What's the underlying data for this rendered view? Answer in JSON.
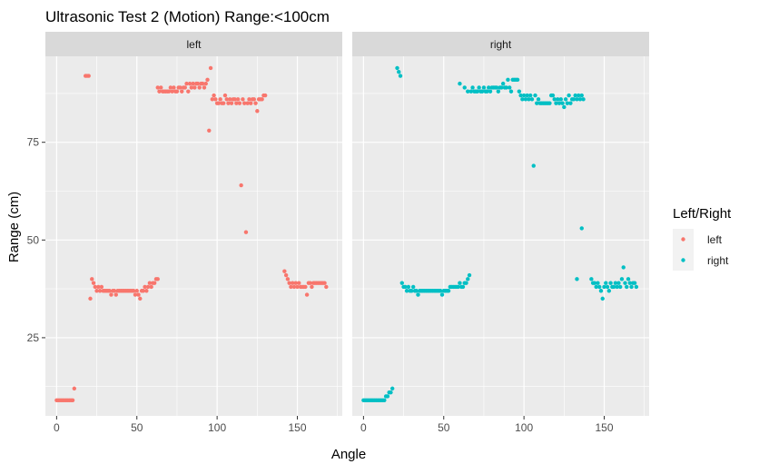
{
  "chart_data": {
    "type": "scatter",
    "title": "Ultrasonic Test 2 (Motion) Range:<100cm",
    "xlabel": "Angle",
    "ylabel": "Range (cm)",
    "xlim": [
      -7,
      178
    ],
    "ylim": [
      5,
      97
    ],
    "x_ticks": [
      0,
      50,
      100,
      150
    ],
    "y_ticks": [
      25,
      50,
      75
    ],
    "grid": true,
    "legend": {
      "title": "Left/Right",
      "position": "right",
      "entries": [
        {
          "label": "left",
          "color": "#F8766D"
        },
        {
          "label": "right",
          "color": "#00BFC4"
        }
      ]
    },
    "facets": [
      {
        "label": "left",
        "color": "#F8766D",
        "points": [
          [
            0,
            9
          ],
          [
            1,
            9
          ],
          [
            2,
            9
          ],
          [
            3,
            9
          ],
          [
            4,
            9
          ],
          [
            5,
            9
          ],
          [
            6,
            9
          ],
          [
            7,
            9
          ],
          [
            8,
            9
          ],
          [
            9,
            9
          ],
          [
            10,
            9
          ],
          [
            11,
            12
          ],
          [
            18,
            92
          ],
          [
            19,
            92
          ],
          [
            20,
            92
          ],
          [
            21,
            35
          ],
          [
            22,
            40
          ],
          [
            23,
            39
          ],
          [
            24,
            38
          ],
          [
            25,
            37
          ],
          [
            26,
            38
          ],
          [
            27,
            37
          ],
          [
            28,
            38
          ],
          [
            29,
            37
          ],
          [
            30,
            37
          ],
          [
            31,
            37
          ],
          [
            32,
            37
          ],
          [
            33,
            37
          ],
          [
            34,
            36
          ],
          [
            35,
            37
          ],
          [
            36,
            37
          ],
          [
            37,
            36
          ],
          [
            38,
            37
          ],
          [
            39,
            37
          ],
          [
            40,
            37
          ],
          [
            41,
            37
          ],
          [
            42,
            37
          ],
          [
            43,
            37
          ],
          [
            44,
            37
          ],
          [
            45,
            37
          ],
          [
            46,
            37
          ],
          [
            47,
            37
          ],
          [
            48,
            37
          ],
          [
            49,
            36
          ],
          [
            50,
            37
          ],
          [
            51,
            36
          ],
          [
            52,
            35
          ],
          [
            53,
            37
          ],
          [
            54,
            37
          ],
          [
            55,
            38
          ],
          [
            56,
            37
          ],
          [
            57,
            38
          ],
          [
            58,
            39
          ],
          [
            59,
            38
          ],
          [
            60,
            39
          ],
          [
            61,
            39
          ],
          [
            62,
            40
          ],
          [
            63,
            40
          ],
          [
            63,
            89
          ],
          [
            64,
            88
          ],
          [
            65,
            89
          ],
          [
            66,
            88
          ],
          [
            67,
            88
          ],
          [
            68,
            88
          ],
          [
            69,
            88
          ],
          [
            70,
            88
          ],
          [
            71,
            89
          ],
          [
            72,
            88
          ],
          [
            73,
            89
          ],
          [
            74,
            88
          ],
          [
            75,
            88
          ],
          [
            76,
            89
          ],
          [
            77,
            89
          ],
          [
            78,
            88
          ],
          [
            79,
            89
          ],
          [
            80,
            89
          ],
          [
            81,
            90
          ],
          [
            82,
            88
          ],
          [
            83,
            90
          ],
          [
            84,
            89
          ],
          [
            85,
            90
          ],
          [
            86,
            89
          ],
          [
            87,
            90
          ],
          [
            88,
            90
          ],
          [
            89,
            89
          ],
          [
            90,
            90
          ],
          [
            91,
            90
          ],
          [
            92,
            89
          ],
          [
            93,
            90
          ],
          [
            94,
            91
          ],
          [
            95,
            78
          ],
          [
            96,
            94
          ],
          [
            97,
            86
          ],
          [
            98,
            87
          ],
          [
            99,
            86
          ],
          [
            100,
            85
          ],
          [
            101,
            85
          ],
          [
            102,
            86
          ],
          [
            103,
            85
          ],
          [
            104,
            85
          ],
          [
            105,
            87
          ],
          [
            106,
            86
          ],
          [
            107,
            85
          ],
          [
            108,
            86
          ],
          [
            109,
            85
          ],
          [
            110,
            86
          ],
          [
            111,
            86
          ],
          [
            112,
            85
          ],
          [
            113,
            86
          ],
          [
            114,
            85
          ],
          [
            115,
            64
          ],
          [
            116,
            86
          ],
          [
            117,
            85
          ],
          [
            118,
            52
          ],
          [
            119,
            85
          ],
          [
            120,
            86
          ],
          [
            121,
            85
          ],
          [
            122,
            86
          ],
          [
            123,
            86
          ],
          [
            124,
            85
          ],
          [
            125,
            83
          ],
          [
            126,
            86
          ],
          [
            127,
            86
          ],
          [
            128,
            86
          ],
          [
            129,
            87
          ],
          [
            130,
            87
          ],
          [
            142,
            42
          ],
          [
            143,
            41
          ],
          [
            144,
            40
          ],
          [
            145,
            39
          ],
          [
            146,
            38
          ],
          [
            147,
            39
          ],
          [
            148,
            38
          ],
          [
            149,
            39
          ],
          [
            150,
            38
          ],
          [
            151,
            39
          ],
          [
            152,
            38
          ],
          [
            153,
            38
          ],
          [
            154,
            38
          ],
          [
            155,
            38
          ],
          [
            156,
            36
          ],
          [
            157,
            39
          ],
          [
            158,
            39
          ],
          [
            159,
            38
          ],
          [
            160,
            39
          ],
          [
            161,
            39
          ],
          [
            162,
            39
          ],
          [
            163,
            39
          ],
          [
            164,
            39
          ],
          [
            165,
            39
          ],
          [
            166,
            39
          ],
          [
            167,
            39
          ],
          [
            168,
            38
          ]
        ]
      },
      {
        "label": "right",
        "color": "#00BFC4",
        "points": [
          [
            0,
            9
          ],
          [
            1,
            9
          ],
          [
            2,
            9
          ],
          [
            3,
            9
          ],
          [
            4,
            9
          ],
          [
            5,
            9
          ],
          [
            6,
            9
          ],
          [
            7,
            9
          ],
          [
            8,
            9
          ],
          [
            9,
            9
          ],
          [
            10,
            9
          ],
          [
            11,
            9
          ],
          [
            12,
            9
          ],
          [
            13,
            9
          ],
          [
            14,
            10
          ],
          [
            15,
            10
          ],
          [
            16,
            11
          ],
          [
            17,
            11
          ],
          [
            18,
            12
          ],
          [
            21,
            94
          ],
          [
            22,
            93
          ],
          [
            23,
            92
          ],
          [
            24,
            39
          ],
          [
            25,
            38
          ],
          [
            26,
            38
          ],
          [
            27,
            37
          ],
          [
            28,
            38
          ],
          [
            29,
            37
          ],
          [
            30,
            37
          ],
          [
            31,
            38
          ],
          [
            32,
            37
          ],
          [
            33,
            37
          ],
          [
            34,
            36
          ],
          [
            35,
            37
          ],
          [
            36,
            37
          ],
          [
            37,
            37
          ],
          [
            38,
            37
          ],
          [
            39,
            37
          ],
          [
            40,
            37
          ],
          [
            41,
            37
          ],
          [
            42,
            37
          ],
          [
            43,
            37
          ],
          [
            44,
            37
          ],
          [
            45,
            37
          ],
          [
            46,
            37
          ],
          [
            47,
            37
          ],
          [
            48,
            37
          ],
          [
            49,
            36
          ],
          [
            50,
            37
          ],
          [
            51,
            37
          ],
          [
            52,
            37
          ],
          [
            53,
            37
          ],
          [
            54,
            38
          ],
          [
            55,
            38
          ],
          [
            56,
            38
          ],
          [
            57,
            38
          ],
          [
            58,
            38
          ],
          [
            59,
            38
          ],
          [
            60,
            39
          ],
          [
            61,
            38
          ],
          [
            62,
            38
          ],
          [
            63,
            39
          ],
          [
            64,
            39
          ],
          [
            65,
            40
          ],
          [
            66,
            41
          ],
          [
            60,
            90
          ],
          [
            63,
            89
          ],
          [
            65,
            88
          ],
          [
            67,
            88
          ],
          [
            68,
            89
          ],
          [
            69,
            88
          ],
          [
            70,
            88
          ],
          [
            71,
            88
          ],
          [
            72,
            89
          ],
          [
            73,
            88
          ],
          [
            74,
            88
          ],
          [
            75,
            89
          ],
          [
            76,
            88
          ],
          [
            77,
            88
          ],
          [
            78,
            89
          ],
          [
            79,
            88
          ],
          [
            80,
            89
          ],
          [
            81,
            89
          ],
          [
            82,
            89
          ],
          [
            83,
            89
          ],
          [
            84,
            88
          ],
          [
            85,
            89
          ],
          [
            86,
            89
          ],
          [
            87,
            90
          ],
          [
            88,
            89
          ],
          [
            89,
            89
          ],
          [
            90,
            91
          ],
          [
            91,
            89
          ],
          [
            92,
            88
          ],
          [
            93,
            91
          ],
          [
            94,
            91
          ],
          [
            95,
            91
          ],
          [
            96,
            91
          ],
          [
            97,
            88
          ],
          [
            98,
            87
          ],
          [
            99,
            86
          ],
          [
            100,
            87
          ],
          [
            101,
            86
          ],
          [
            102,
            87
          ],
          [
            103,
            86
          ],
          [
            104,
            87
          ],
          [
            105,
            86
          ],
          [
            106,
            69
          ],
          [
            107,
            87
          ],
          [
            108,
            85
          ],
          [
            109,
            86
          ],
          [
            110,
            85
          ],
          [
            111,
            85
          ],
          [
            112,
            85
          ],
          [
            113,
            85
          ],
          [
            114,
            85
          ],
          [
            115,
            85
          ],
          [
            116,
            85
          ],
          [
            117,
            87
          ],
          [
            118,
            87
          ],
          [
            119,
            86
          ],
          [
            120,
            85
          ],
          [
            121,
            86
          ],
          [
            122,
            85
          ],
          [
            123,
            86
          ],
          [
            124,
            85
          ],
          [
            125,
            84
          ],
          [
            126,
            86
          ],
          [
            127,
            85
          ],
          [
            128,
            87
          ],
          [
            129,
            85
          ],
          [
            130,
            86
          ],
          [
            131,
            86
          ],
          [
            132,
            87
          ],
          [
            133,
            86
          ],
          [
            134,
            87
          ],
          [
            135,
            86
          ],
          [
            136,
            87
          ],
          [
            137,
            86
          ],
          [
            133,
            40
          ],
          [
            136,
            53
          ],
          [
            142,
            40
          ],
          [
            143,
            39
          ],
          [
            144,
            39
          ],
          [
            145,
            38
          ],
          [
            146,
            39
          ],
          [
            147,
            38
          ],
          [
            148,
            37
          ],
          [
            149,
            35
          ],
          [
            150,
            38
          ],
          [
            151,
            39
          ],
          [
            152,
            38
          ],
          [
            153,
            37
          ],
          [
            154,
            39
          ],
          [
            155,
            38
          ],
          [
            156,
            38
          ],
          [
            157,
            39
          ],
          [
            158,
            38
          ],
          [
            159,
            39
          ],
          [
            160,
            38
          ],
          [
            161,
            40
          ],
          [
            162,
            43
          ],
          [
            163,
            39
          ],
          [
            164,
            38
          ],
          [
            165,
            40
          ],
          [
            166,
            39
          ],
          [
            167,
            38
          ],
          [
            168,
            39
          ],
          [
            169,
            39
          ],
          [
            170,
            38
          ]
        ]
      }
    ]
  }
}
